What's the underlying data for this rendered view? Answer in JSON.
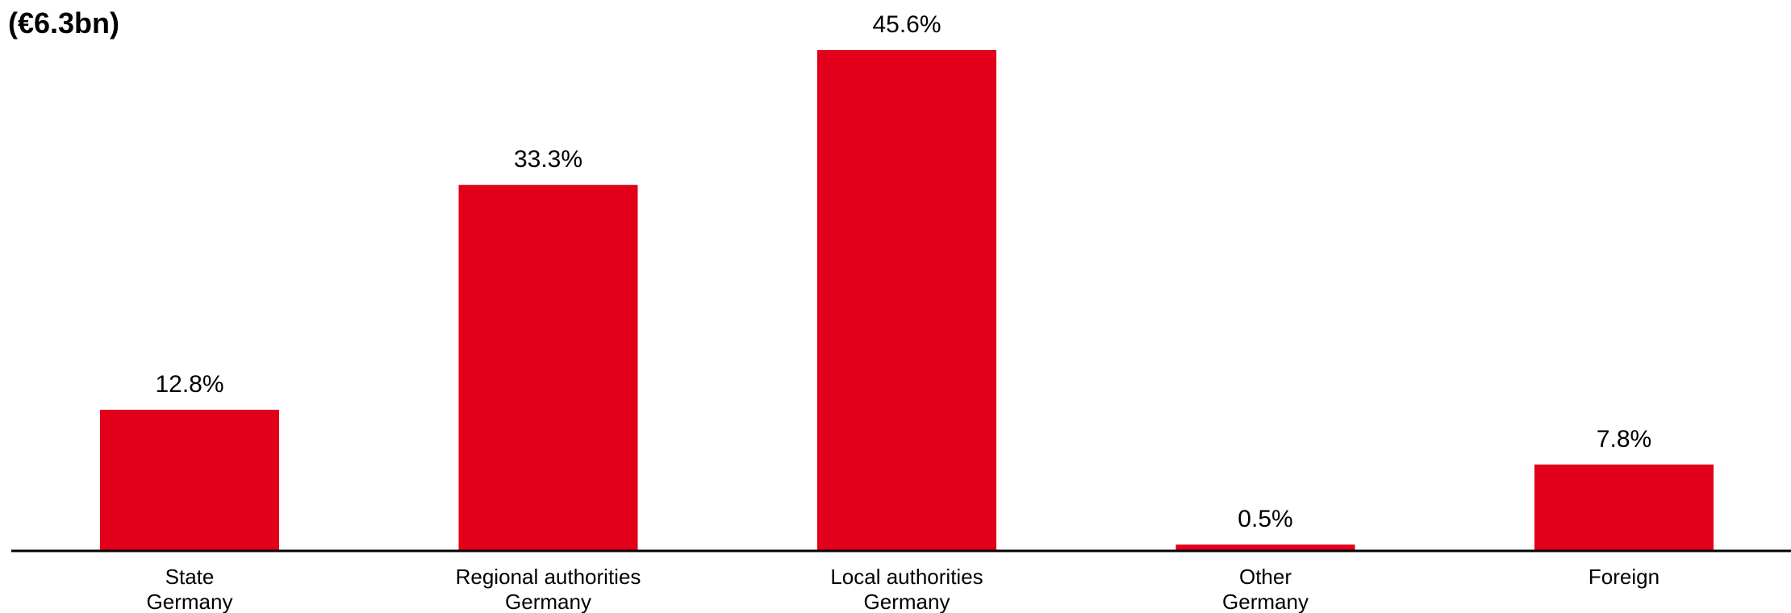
{
  "chart_data": {
    "type": "bar",
    "title": "(€6.3bn)",
    "categories": [
      [
        "State",
        "Germany"
      ],
      [
        "Regional authorities",
        "Germany"
      ],
      [
        "Local authorities",
        "Germany"
      ],
      [
        "Other",
        "Germany"
      ],
      [
        "Foreign"
      ]
    ],
    "values": [
      12.8,
      33.3,
      45.6,
      0.5,
      7.8
    ],
    "data_labels": [
      "12.8%",
      "33.3%",
      "45.6%",
      "0.5%",
      "7.8%"
    ],
    "unit": "%",
    "ylim": [
      0,
      45.6
    ],
    "grid": false,
    "legend": "none",
    "colors": {
      "bar": "#e2001a",
      "axis": "#000000",
      "text": "#000000"
    }
  }
}
